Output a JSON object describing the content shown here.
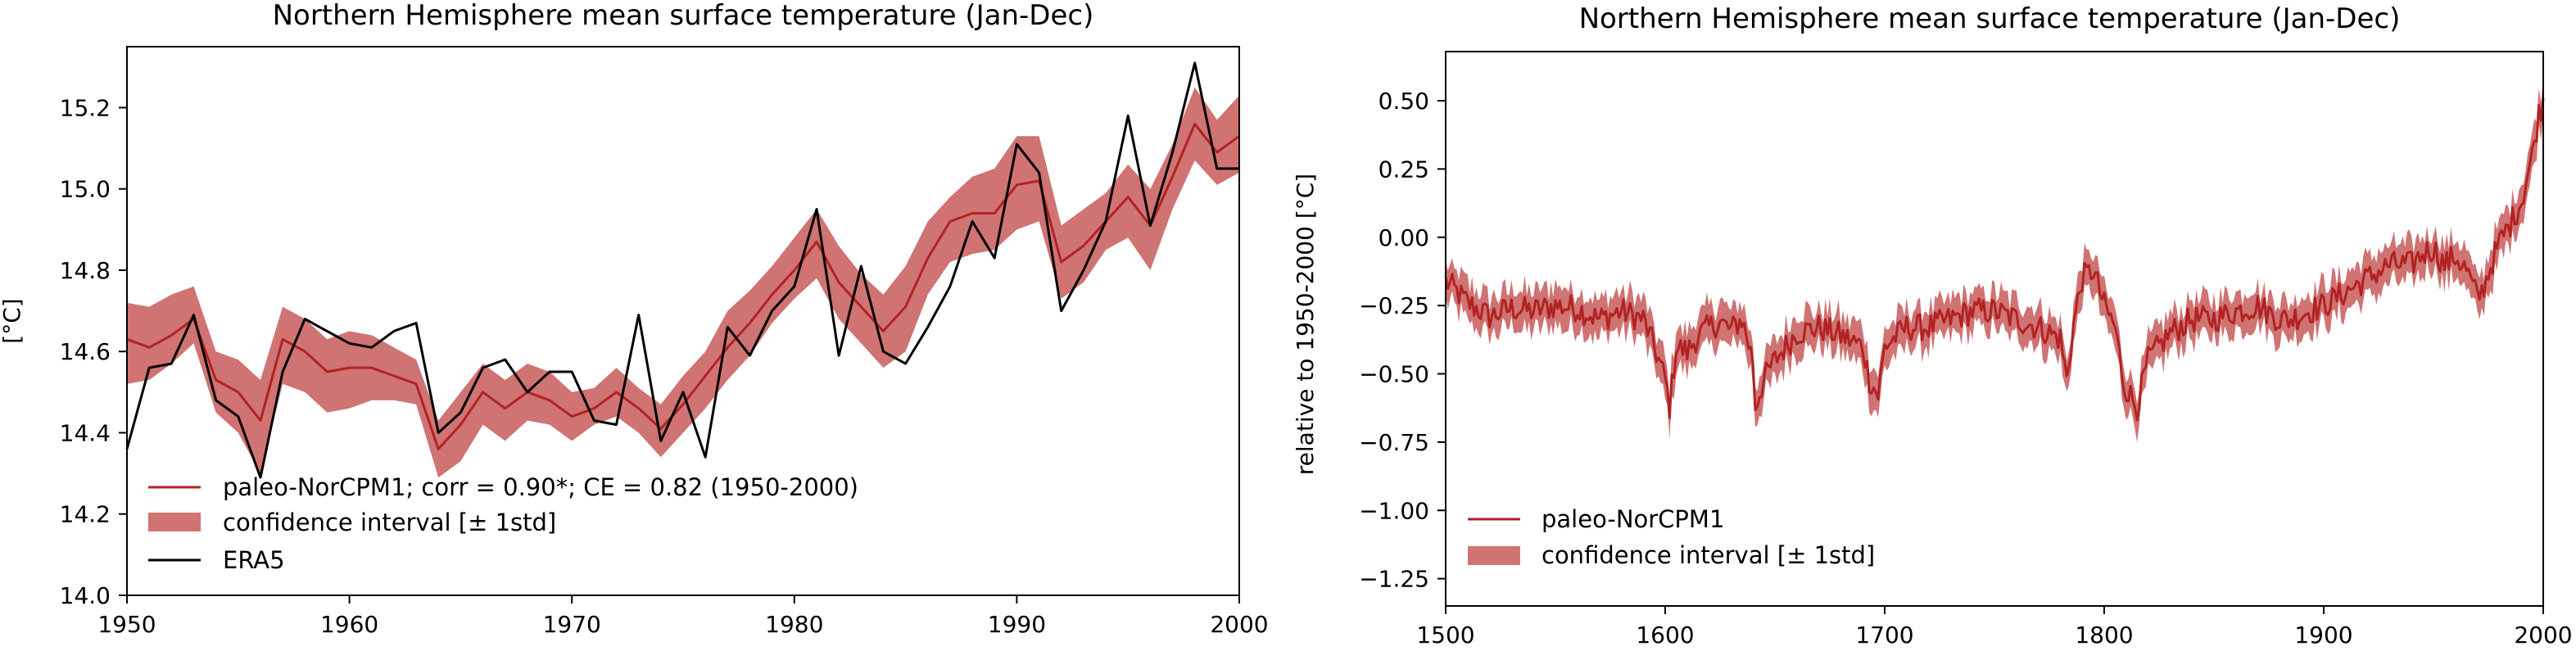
{
  "chart_data": [
    {
      "type": "line",
      "title": "Northern Hemisphere mean surface temperature (Jan-Dec)",
      "xlabel": "",
      "ylabel": "[°C]",
      "xlim": [
        1950,
        2000
      ],
      "ylim": [
        14.0,
        15.35
      ],
      "x_ticks": [
        1950,
        1960,
        1970,
        1980,
        1990,
        2000
      ],
      "y_ticks": [
        14.0,
        14.2,
        14.4,
        14.6,
        14.8,
        15.0,
        15.2
      ],
      "x": [
        1950,
        1951,
        1952,
        1953,
        1954,
        1955,
        1956,
        1957,
        1958,
        1959,
        1960,
        1961,
        1962,
        1963,
        1964,
        1965,
        1966,
        1967,
        1968,
        1969,
        1970,
        1971,
        1972,
        1973,
        1974,
        1975,
        1976,
        1977,
        1978,
        1979,
        1980,
        1981,
        1982,
        1983,
        1984,
        1985,
        1986,
        1987,
        1988,
        1989,
        1990,
        1991,
        1992,
        1993,
        1994,
        1995,
        1996,
        1997,
        1998,
        1999,
        2000
      ],
      "grid": false,
      "legend_position": "lower-left",
      "series": [
        {
          "name": "paleo-NorCPM1; corr = 0.90*; CE = 0.82 (1950-2000)",
          "kind": "line",
          "color": "#b22222",
          "values": [
            14.63,
            14.61,
            14.64,
            14.68,
            14.53,
            14.5,
            14.43,
            14.63,
            14.6,
            14.55,
            14.56,
            14.56,
            14.54,
            14.52,
            14.36,
            14.42,
            14.5,
            14.46,
            14.5,
            14.48,
            14.44,
            14.46,
            14.5,
            14.46,
            14.41,
            14.47,
            14.54,
            14.61,
            14.67,
            14.74,
            14.8,
            14.87,
            14.77,
            14.71,
            14.65,
            14.71,
            14.83,
            14.92,
            14.94,
            14.94,
            15.01,
            15.02,
            14.82,
            14.86,
            14.92,
            14.98,
            14.91,
            15.03,
            15.16,
            15.09,
            15.13
          ]
        },
        {
          "name": "confidence interval [± 1std]",
          "kind": "band",
          "color": "#d07373",
          "lower": [
            14.52,
            14.53,
            14.57,
            14.62,
            14.45,
            14.4,
            14.3,
            14.52,
            14.5,
            14.45,
            14.46,
            14.48,
            14.48,
            14.47,
            14.29,
            14.33,
            14.42,
            14.38,
            14.43,
            14.42,
            14.38,
            14.42,
            14.44,
            14.4,
            14.34,
            14.4,
            14.46,
            14.53,
            14.59,
            14.67,
            14.73,
            14.78,
            14.68,
            14.62,
            14.56,
            14.6,
            14.74,
            14.82,
            14.84,
            14.85,
            14.9,
            14.92,
            14.73,
            14.77,
            14.85,
            14.88,
            14.8,
            14.95,
            15.07,
            15.01,
            15.04
          ],
          "upper": [
            14.72,
            14.71,
            14.74,
            14.76,
            14.6,
            14.58,
            14.53,
            14.71,
            14.68,
            14.63,
            14.65,
            14.64,
            14.61,
            14.58,
            14.43,
            14.5,
            14.57,
            14.53,
            14.57,
            14.55,
            14.5,
            14.51,
            14.56,
            14.51,
            14.47,
            14.54,
            14.6,
            14.7,
            14.75,
            14.81,
            14.88,
            14.95,
            14.86,
            14.79,
            14.74,
            14.81,
            14.92,
            14.98,
            15.03,
            15.05,
            15.13,
            15.13,
            14.91,
            14.95,
            14.99,
            15.06,
            15.0,
            15.11,
            15.25,
            15.17,
            15.23
          ]
        },
        {
          "name": "ERA5",
          "kind": "line",
          "color": "#000000",
          "values": [
            14.36,
            14.56,
            14.57,
            14.69,
            14.48,
            14.44,
            14.29,
            14.55,
            14.68,
            14.65,
            14.62,
            14.61,
            14.65,
            14.67,
            14.4,
            14.45,
            14.56,
            14.58,
            14.5,
            14.55,
            14.55,
            14.43,
            14.42,
            14.69,
            14.38,
            14.5,
            14.34,
            14.66,
            14.59,
            14.7,
            14.76,
            14.95,
            14.59,
            14.81,
            14.6,
            14.57,
            14.66,
            14.76,
            14.92,
            14.83,
            15.11,
            15.04,
            14.7,
            14.8,
            14.92,
            15.18,
            14.91,
            15.09,
            15.31,
            15.05,
            15.05
          ]
        }
      ]
    },
    {
      "type": "line",
      "title": "Northern Hemisphere mean surface temperature (Jan-Dec)",
      "xlabel": "",
      "ylabel": "relative to 1950-2000 [°C]",
      "xlim": [
        1500,
        2000
      ],
      "ylim": [
        -1.35,
        0.68
      ],
      "x_ticks": [
        1500,
        1600,
        1700,
        1800,
        1900,
        2000
      ],
      "y_ticks": [
        -1.25,
        -1.0,
        -0.75,
        -0.5,
        -0.25,
        0.0,
        0.25,
        0.5
      ],
      "y_tick_labels": [
        "−1.25",
        "−1.00",
        "−0.75",
        "−0.50",
        "−0.25",
        "0.00",
        "0.25",
        "0.50"
      ],
      "grid": false,
      "legend_position": "lower-left",
      "series": [
        {
          "name": "paleo-NorCPM1",
          "kind": "line",
          "color": "#b22222",
          "anchors": [
            [
              1500,
              -0.16
            ],
            [
              1510,
              -0.24
            ],
            [
              1520,
              -0.29
            ],
            [
              1530,
              -0.26
            ],
            [
              1540,
              -0.27
            ],
            [
              1550,
              -0.25
            ],
            [
              1560,
              -0.26
            ],
            [
              1570,
              -0.3
            ],
            [
              1580,
              -0.27
            ],
            [
              1590,
              -0.3
            ],
            [
              1595,
              -0.4
            ],
            [
              1600,
              -0.52
            ],
            [
              1602,
              -0.62
            ],
            [
              1605,
              -0.4
            ],
            [
              1610,
              -0.42
            ],
            [
              1615,
              -0.36
            ],
            [
              1620,
              -0.33
            ],
            [
              1625,
              -0.31
            ],
            [
              1630,
              -0.34
            ],
            [
              1635,
              -0.3
            ],
            [
              1640,
              -0.45
            ],
            [
              1641,
              -0.62
            ],
            [
              1645,
              -0.52
            ],
            [
              1650,
              -0.45
            ],
            [
              1660,
              -0.35
            ],
            [
              1670,
              -0.33
            ],
            [
              1680,
              -0.36
            ],
            [
              1690,
              -0.4
            ],
            [
              1693,
              -0.52
            ],
            [
              1697,
              -0.58
            ],
            [
              1700,
              -0.4
            ],
            [
              1710,
              -0.33
            ],
            [
              1720,
              -0.33
            ],
            [
              1730,
              -0.3
            ],
            [
              1740,
              -0.27
            ],
            [
              1750,
              -0.27
            ],
            [
              1760,
              -0.3
            ],
            [
              1770,
              -0.33
            ],
            [
              1780,
              -0.37
            ],
            [
              1783,
              -0.52
            ],
            [
              1786,
              -0.32
            ],
            [
              1790,
              -0.15
            ],
            [
              1795,
              -0.12
            ],
            [
              1800,
              -0.25
            ],
            [
              1805,
              -0.33
            ],
            [
              1809,
              -0.54
            ],
            [
              1815,
              -0.62
            ],
            [
              1820,
              -0.45
            ],
            [
              1830,
              -0.35
            ],
            [
              1840,
              -0.3
            ],
            [
              1850,
              -0.3
            ],
            [
              1860,
              -0.27
            ],
            [
              1870,
              -0.25
            ],
            [
              1880,
              -0.3
            ],
            [
              1885,
              -0.3
            ],
            [
              1890,
              -0.28
            ],
            [
              1900,
              -0.25
            ],
            [
              1910,
              -0.2
            ],
            [
              1920,
              -0.15
            ],
            [
              1930,
              -0.1
            ],
            [
              1940,
              -0.1
            ],
            [
              1945,
              -0.06
            ],
            [
              1950,
              -0.04
            ],
            [
              1955,
              -0.1
            ],
            [
              1960,
              -0.07
            ],
            [
              1965,
              -0.12
            ],
            [
              1970,
              -0.22
            ],
            [
              1972,
              -0.2
            ],
            [
              1975,
              -0.13
            ],
            [
              1980,
              -0.02
            ],
            [
              1985,
              0.05
            ],
            [
              1990,
              0.13
            ],
            [
              1995,
              0.3
            ],
            [
              1998,
              0.45
            ],
            [
              2000,
              0.5
            ]
          ],
          "wiggle": 0.05
        },
        {
          "name": "confidence interval [± 1std]",
          "kind": "band",
          "color": "#d07373",
          "half_width": 0.07
        }
      ]
    }
  ]
}
